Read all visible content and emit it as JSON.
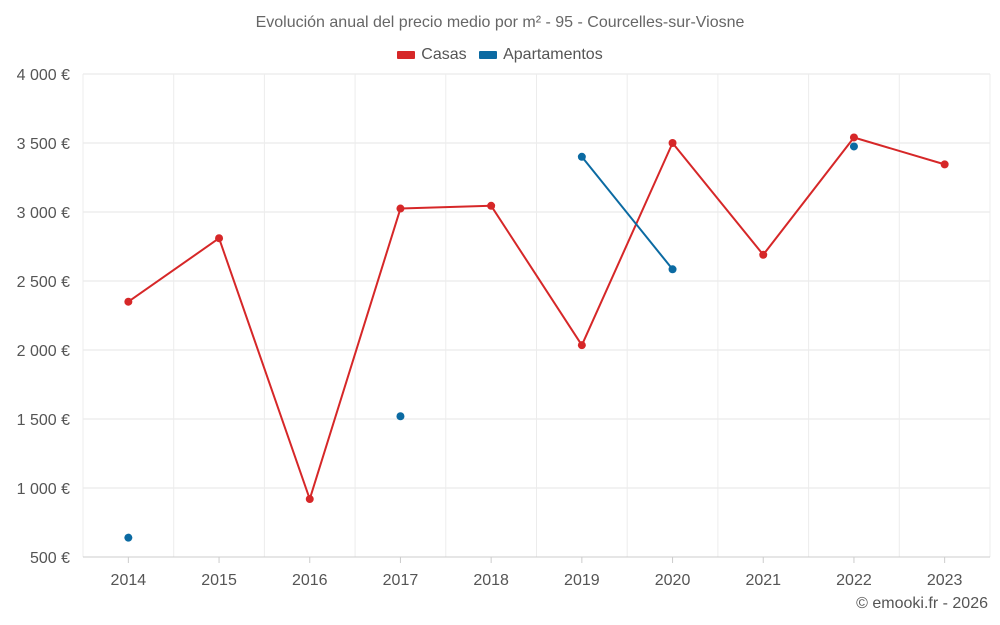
{
  "chart_data": {
    "type": "line",
    "title": "Evolución anual del precio medio por m² - 95 - Courcelles-sur-Viosne",
    "categories": [
      "2014",
      "2015",
      "2016",
      "2017",
      "2018",
      "2019",
      "2020",
      "2021",
      "2022",
      "2023"
    ],
    "series": [
      {
        "name": "Casas",
        "color": "#d62728",
        "values": [
          2350,
          2810,
          920,
          3025,
          3045,
          2035,
          3500,
          2690,
          3540,
          3345
        ]
      },
      {
        "name": "Apartamentos",
        "color": "#0b6aa2",
        "values": [
          640,
          null,
          null,
          1520,
          null,
          3400,
          2585,
          null,
          3475,
          null
        ]
      }
    ],
    "ylim": [
      500,
      4000
    ],
    "yticks": [
      500,
      1000,
      1500,
      2000,
      2500,
      3000,
      3500,
      4000
    ],
    "ytick_labels": [
      "500 €",
      "1 000 €",
      "1 500 €",
      "2 000 €",
      "2 500 €",
      "3 000 €",
      "3 500 €",
      "4 000 €"
    ],
    "xlabel": "",
    "ylabel": "",
    "legend_position": "top-center",
    "grid": true
  },
  "credit": "© emooki.fr - 2026"
}
